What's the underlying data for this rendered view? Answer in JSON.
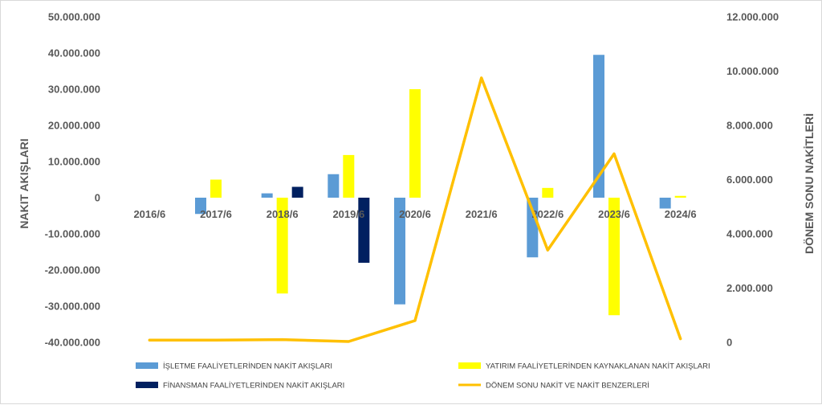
{
  "chart_data": {
    "type": "bar",
    "categories": [
      "2016/6",
      "2017/6",
      "2018/6",
      "2019/6",
      "2020/6",
      "2021/6",
      "2022/6",
      "2023/6",
      "2024/6"
    ],
    "series": [
      {
        "name": "İŞLETME FAALİYETLERİNDEN NAKİT AKIŞLARI",
        "kind": "bar",
        "axis": "left",
        "color": "#5b9bd5",
        "values": [
          0,
          -4500000,
          1200000,
          6500000,
          -29500000,
          0,
          -16500000,
          39500000,
          -3000000
        ]
      },
      {
        "name": "YATIRIM FAALİYETLERİNDEN KAYNAKLANAN NAKİT AKIŞLARI",
        "kind": "bar",
        "axis": "left",
        "color": "#ffff00",
        "values": [
          0,
          5000000,
          -26500000,
          11800000,
          30000000,
          0,
          2700000,
          -32500000,
          500000
        ]
      },
      {
        "name": "FİNANSMAN FAALİYETLERİNDEN NAKİT AKIŞLARI",
        "kind": "bar",
        "axis": "left",
        "color": "#002060",
        "values": [
          0,
          0,
          3000000,
          -18000000,
          0,
          0,
          0,
          0,
          0
        ]
      },
      {
        "name": "DÖNEM SONU NAKİT VE NAKİT BENZERLERİ",
        "kind": "line",
        "axis": "right",
        "color": "#ffc000",
        "values": [
          80000,
          80000,
          100000,
          30000,
          800000,
          9750000,
          3400000,
          6950000,
          130000
        ]
      }
    ],
    "ylabel": "NAKIT AKIŞLARI",
    "y2label": "DÖNEM SONU NAKİTLERİ",
    "ylim": [
      -40000000,
      50000000
    ],
    "y2lim": [
      0,
      12000000
    ],
    "yticks": [
      "50.000.000",
      "40.000.000",
      "30.000.000",
      "20.000.000",
      "10.000.000",
      "0",
      "-10.000.000",
      "-20.000.000",
      "-30.000.000",
      "-40.000.000"
    ],
    "y2ticks": [
      "12.000.000",
      "10.000.000",
      "8.000.000",
      "6.000.000",
      "4.000.000",
      "2.000.000",
      "0"
    ],
    "grid": false,
    "legend_position": "bottom"
  }
}
